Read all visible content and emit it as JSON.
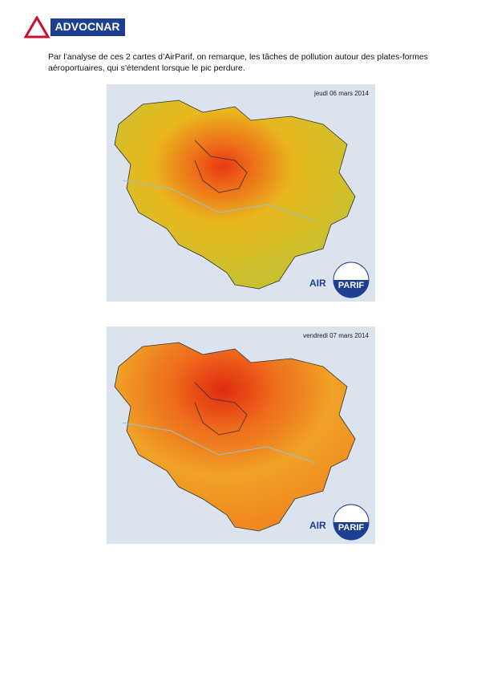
{
  "header": {
    "logo": "ADVOCNAR"
  },
  "body": {
    "paragraph": "Par l’analyse de ces 2 cartes d’AirParif, on remarque, les tâches de pollution autour des plates-formes aéroportuaires, qui s’étendent lorsque le pic perdure."
  },
  "maps": [
    {
      "date": "jeudi 06 mars 2014",
      "logo": [
        "AIR",
        "PARIF"
      ]
    },
    {
      "date": "vendredi 07 mars 2014",
      "logo": [
        "AIR",
        "PARIF"
      ]
    }
  ]
}
